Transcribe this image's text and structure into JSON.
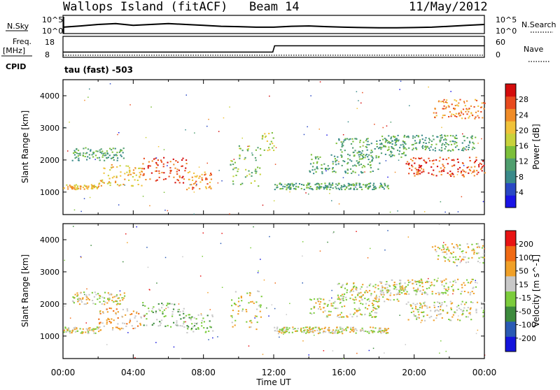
{
  "chart_data": [
    {
      "type": "line",
      "title": "Wallops Island (fitACF)",
      "beam": "Beam 14",
      "date": "11/May/2012",
      "left_label": "N.Sky",
      "right_label": "N.Search",
      "left_ticks": [
        "10^5",
        "10^0"
      ],
      "right_ticks": [
        "10^5",
        "10^0"
      ],
      "x": [
        0,
        1,
        2,
        3,
        4,
        5,
        6,
        7,
        8,
        9,
        10,
        11,
        12,
        13,
        14,
        15,
        16,
        17,
        18,
        19,
        20,
        21,
        22,
        23,
        24
      ],
      "series": [
        {
          "name": "N.Sky",
          "values": [
            0.35,
            0.42,
            0.5,
            0.55,
            0.45,
            0.5,
            0.55,
            0.5,
            0.45,
            0.4,
            0.38,
            0.35,
            0.35,
            0.4,
            0.42,
            0.38,
            0.35,
            0.33,
            0.32,
            0.32,
            0.33,
            0.35,
            0.4,
            0.45,
            0.5
          ]
        }
      ]
    },
    {
      "type": "line",
      "left_label": "Freq.",
      "left_unit": "[MHz]",
      "right_label": "Nave",
      "left_ticks": [
        "18",
        "8"
      ],
      "right_ticks": [
        "60",
        "0"
      ],
      "cpid_label": "CPID",
      "program_label": "tau (fast) -503",
      "x": [
        0,
        11.95,
        12.05,
        24
      ],
      "series": [
        {
          "name": "Freq.",
          "values": [
            10.5,
            10.5,
            13.5,
            13.5
          ]
        }
      ]
    },
    {
      "type": "heatmap",
      "ylabel": "Slant Range [km]",
      "yticks": [
        1000,
        2000,
        3000,
        4000
      ],
      "ylim": [
        300,
        4500
      ],
      "xlim": [
        0,
        24
      ],
      "colorbar_title": "Power [dB]",
      "colorbar_ticks": [
        "28",
        "24",
        "20",
        "16",
        "12",
        "8",
        "4"
      ],
      "colors": [
        "#1a14e6",
        "#2a48c4",
        "#3a8a8a",
        "#4f9e6e",
        "#7cbf3a",
        "#c8d23c",
        "#f0c23a",
        "#f08c28",
        "#e84a1e",
        "#d40c0c"
      ],
      "bands": [
        {
          "t0": 0.0,
          "t1": 2.0,
          "r0": 1100,
          "r1": 1250,
          "level": 6
        },
        {
          "t0": 2.0,
          "t1": 4.5,
          "r0": 1200,
          "r1": 1900,
          "level": 6
        },
        {
          "t0": 4.5,
          "t1": 7.0,
          "r0": 1300,
          "r1": 2100,
          "level": 8
        },
        {
          "t0": 7.0,
          "t1": 8.5,
          "r0": 1100,
          "r1": 1700,
          "level": 7
        },
        {
          "t0": 0.5,
          "t1": 3.5,
          "r0": 2000,
          "r1": 2400,
          "level": 3
        },
        {
          "t0": 9.5,
          "t1": 11.3,
          "r0": 1200,
          "r1": 2500,
          "level": 4
        },
        {
          "t0": 11.3,
          "t1": 12.0,
          "r0": 2300,
          "r1": 2900,
          "level": 5
        },
        {
          "t0": 12.0,
          "t1": 18.5,
          "r0": 1100,
          "r1": 1300,
          "level": 3
        },
        {
          "t0": 14.0,
          "t1": 18.0,
          "r0": 1600,
          "r1": 2200,
          "level": 3
        },
        {
          "t0": 15.5,
          "t1": 19.5,
          "r0": 2100,
          "r1": 2700,
          "level": 3
        },
        {
          "t0": 18.0,
          "t1": 23.5,
          "r0": 2300,
          "r1": 2800,
          "level": 3
        },
        {
          "t0": 19.5,
          "t1": 24.0,
          "r0": 1500,
          "r1": 2100,
          "level": 8
        },
        {
          "t0": 21.0,
          "t1": 24.0,
          "r0": 3300,
          "r1": 3900,
          "level": 7
        }
      ]
    },
    {
      "type": "heatmap",
      "ylabel": "Slant Range [km]",
      "yticks": [
        1000,
        2000,
        3000,
        4000
      ],
      "ylim": [
        300,
        4500
      ],
      "xlim": [
        0,
        24
      ],
      "xticks": [
        "00:00",
        "04:00",
        "08:00",
        "12:00",
        "16:00",
        "20:00",
        "00:00"
      ],
      "xlabel": "Time UT",
      "colorbar_title": "Velocity [m s^-1]",
      "colorbar_ticks": [
        "200",
        "100",
        "50",
        "15",
        "-15",
        "-50",
        "-100",
        "-200"
      ],
      "colors": [
        "#1414dc",
        "#2a5ab4",
        "#3c8a3c",
        "#7ccc3c",
        "#c8c8c8",
        "#f0a028",
        "#f06a14",
        "#e81414"
      ],
      "bands": [
        {
          "t0": 0.0,
          "t1": 2.0,
          "r0": 1100,
          "r1": 1300,
          "level": 4
        },
        {
          "t0": 2.0,
          "t1": 4.5,
          "r0": 1200,
          "r1": 1900,
          "level": 5
        },
        {
          "t0": 4.5,
          "t1": 7.0,
          "r0": 1300,
          "r1": 2100,
          "level": 3
        },
        {
          "t0": 7.0,
          "t1": 8.5,
          "r0": 1100,
          "r1": 1700,
          "level": 3
        },
        {
          "t0": 0.5,
          "t1": 3.5,
          "r0": 2000,
          "r1": 2400,
          "level": 4
        },
        {
          "t0": 9.5,
          "t1": 11.3,
          "r0": 1200,
          "r1": 2500,
          "level": 4
        },
        {
          "t0": 12.0,
          "t1": 18.5,
          "r0": 1100,
          "r1": 1300,
          "level": 4
        },
        {
          "t0": 14.0,
          "t1": 18.0,
          "r0": 1600,
          "r1": 2200,
          "level": 4
        },
        {
          "t0": 15.5,
          "t1": 19.5,
          "r0": 2100,
          "r1": 2700,
          "level": 4
        },
        {
          "t0": 18.0,
          "t1": 23.5,
          "r0": 2300,
          "r1": 2800,
          "level": 4
        },
        {
          "t0": 19.5,
          "t1": 24.0,
          "r0": 1500,
          "r1": 2100,
          "level": 4
        },
        {
          "t0": 21.0,
          "t1": 24.0,
          "r0": 3300,
          "r1": 3900,
          "level": 4
        }
      ]
    }
  ]
}
